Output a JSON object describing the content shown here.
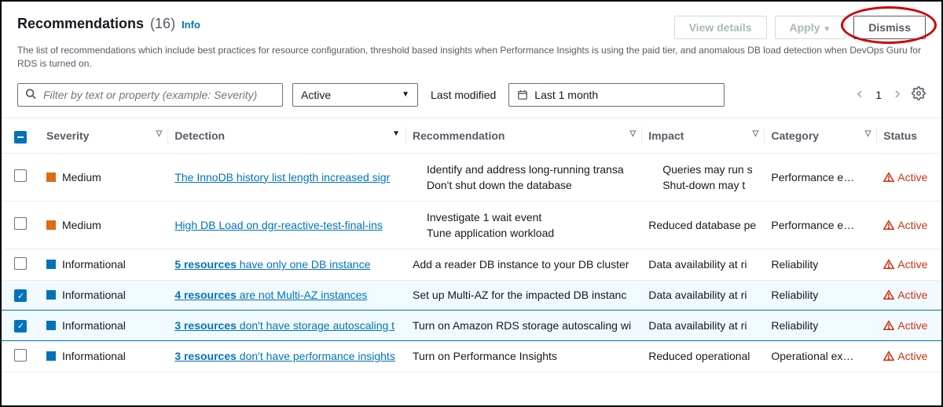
{
  "header": {
    "title": "Recommendations",
    "count": "(16)",
    "info": "Info",
    "description": "The list of recommendations which include best practices for resource configuration, threshold based insights when Performance Insights is using the paid tier, and anomalous DB load detection when DevOps Guru for RDS is turned on."
  },
  "actions": {
    "view_details": "View details",
    "apply": "Apply",
    "dismiss": "Dismiss"
  },
  "toolbar": {
    "search_placeholder": "Filter by text or property (example: Severity)",
    "status_value": "Active",
    "last_modified_label": "Last modified",
    "range_value": "Last 1 month",
    "page": "1"
  },
  "columns": {
    "severity": "Severity",
    "detection": "Detection",
    "recommendation": "Recommendation",
    "impact": "Impact",
    "category": "Category",
    "status": "Status"
  },
  "severity_colors": {
    "medium": "#dd6b10",
    "informational": "#0073bb"
  },
  "status_color": "#d13212",
  "rows": [
    {
      "checked": false,
      "severity": "Medium",
      "severity_key": "medium",
      "detection_bold": "",
      "detection_rest": "The InnoDB history list length increased sigr",
      "recommendation_list": [
        "Identify and address long-running transa",
        "Don't shut down the database"
      ],
      "impact_list": [
        "Queries may run s",
        "Shut-down may t"
      ],
      "category": "Performance e…",
      "status": "Active"
    },
    {
      "checked": false,
      "severity": "Medium",
      "severity_key": "medium",
      "detection_bold": "",
      "detection_rest": "High DB Load on dgr-reactive-test-final-ins",
      "recommendation_list": [
        "Investigate 1 wait event",
        "Tune application workload"
      ],
      "impact_single": "Reduced database pe",
      "category": "Performance e…",
      "status": "Active"
    },
    {
      "checked": false,
      "severity": "Informational",
      "severity_key": "informational",
      "detection_bold": "5 resources",
      "detection_rest": " have only one DB instance",
      "recommendation_single": "Add a reader DB instance to your DB cluster",
      "impact_single": "Data availability at ri",
      "category": "Reliability",
      "status": "Active"
    },
    {
      "checked": true,
      "severity": "Informational",
      "severity_key": "informational",
      "detection_bold": "4 resources",
      "detection_rest": " are not Multi-AZ instances",
      "recommendation_single": "Set up Multi-AZ for the impacted DB instanc",
      "impact_single": "Data availability at ri",
      "category": "Reliability",
      "status": "Active"
    },
    {
      "checked": true,
      "severity": "Informational",
      "severity_key": "informational",
      "detection_bold": "3 resources",
      "detection_rest": " don't have storage autoscaling t",
      "recommendation_single": "Turn on Amazon RDS storage autoscaling wi",
      "impact_single": "Data availability at ri",
      "category": "Reliability",
      "status": "Active"
    },
    {
      "checked": false,
      "severity": "Informational",
      "severity_key": "informational",
      "detection_bold": "3 resources",
      "detection_rest": " don't have performance insights",
      "recommendation_single": "Turn on Performance Insights",
      "impact_single": "Reduced operational",
      "category": "Operational ex…",
      "status": "Active"
    }
  ]
}
